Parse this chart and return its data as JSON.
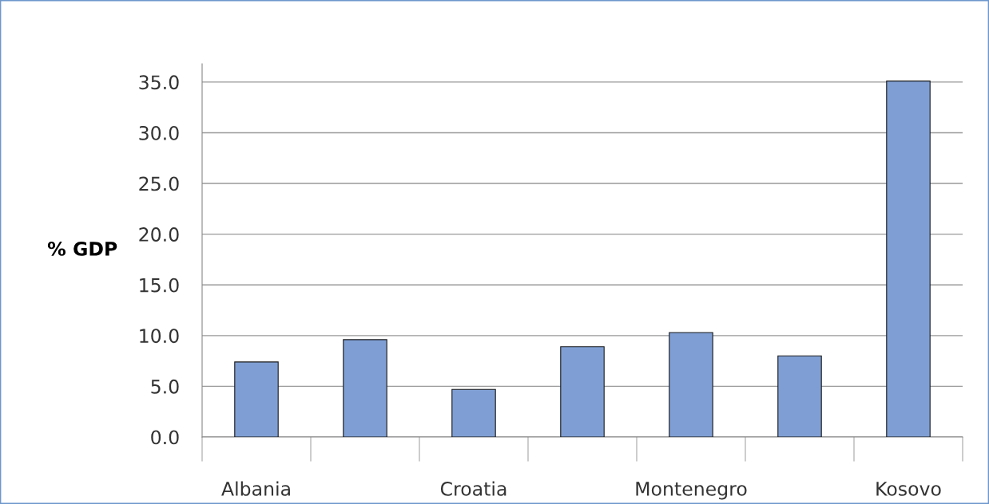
{
  "chart_data": {
    "type": "bar",
    "ylabel": "% GDP",
    "categories": [
      "Albania",
      null,
      "Croatia",
      null,
      "Montenegro",
      null,
      "Kosovo"
    ],
    "values": [
      7.4,
      9.6,
      4.7,
      8.9,
      10.3,
      8.0,
      35.1
    ],
    "color": "#7f9fd4",
    "ylim": [
      0,
      36.8
    ],
    "yticks": [
      {
        "value": 0,
        "label": "0.0"
      },
      {
        "value": 5,
        "label": "5.0"
      },
      {
        "value": 10,
        "label": "10.0"
      },
      {
        "value": 15,
        "label": "15.0"
      },
      {
        "value": 20,
        "label": "20.0"
      },
      {
        "value": 25,
        "label": "25.0"
      },
      {
        "value": 30,
        "label": "30.0"
      },
      {
        "value": 35,
        "label": "35.0"
      }
    ],
    "grid": "y",
    "legend": false
  }
}
